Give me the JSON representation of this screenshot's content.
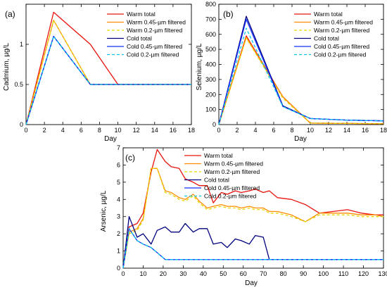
{
  "chart_data": [
    {
      "type": "line",
      "panel_label": "(a)",
      "xlabel": "Day",
      "ylabel": "Cadmium, µg/L",
      "xlim": [
        0,
        18
      ],
      "ylim": [
        0,
        1.5
      ],
      "xticks": [
        0,
        2,
        4,
        6,
        8,
        10,
        12,
        14,
        16,
        18
      ],
      "yticks": [
        0,
        0.5,
        1,
        1.5
      ],
      "ytick_labels": [
        "0",
        "0.5",
        "1",
        ""
      ],
      "legend_position": "top-right",
      "series": [
        {
          "name": "Warm total",
          "color": "#e8140c",
          "dash": "solid",
          "x": [
            0,
            3,
            7,
            10,
            18
          ],
          "y": [
            0,
            1.4,
            1.0,
            0.5,
            0.5
          ]
        },
        {
          "name": "Warm 0.45-µm filtered",
          "color": "#ff8c00",
          "dash": "solid",
          "x": [
            0,
            3,
            7,
            10,
            18
          ],
          "y": [
            0,
            1.3,
            0.5,
            0.5,
            0.5
          ]
        },
        {
          "name": "Warm 0.2-µm filtered",
          "color": "#e6d800",
          "dash": "dashed",
          "x": [
            0,
            3,
            7,
            10,
            18
          ],
          "y": [
            0,
            1.3,
            0.5,
            0.5,
            0.5
          ]
        },
        {
          "name": "Cold total",
          "color": "#000080",
          "dash": "solid",
          "x": [
            0,
            3,
            7,
            10,
            18
          ],
          "y": [
            0,
            1.1,
            0.5,
            0.5,
            0.5
          ]
        },
        {
          "name": "Cold 0.45-µm filtered",
          "color": "#1530ff",
          "dash": "solid",
          "x": [
            0,
            3,
            7,
            10,
            18
          ],
          "y": [
            0,
            1.1,
            0.5,
            0.5,
            0.5
          ]
        },
        {
          "name": "Cold 0.2-µm filtered",
          "color": "#00c8e6",
          "dash": "dashed",
          "x": [
            0,
            3,
            7,
            10,
            18
          ],
          "y": [
            0,
            1.1,
            0.5,
            0.5,
            0.5
          ]
        }
      ]
    },
    {
      "type": "line",
      "panel_label": "(b)",
      "xlabel": "Day",
      "ylabel": "Selenium, µg/L",
      "xlim": [
        0,
        18
      ],
      "ylim": [
        0,
        800
      ],
      "xticks": [
        0,
        2,
        4,
        6,
        8,
        10,
        12,
        14,
        16,
        18
      ],
      "yticks": [
        0,
        100,
        200,
        300,
        400,
        500,
        600,
        700,
        800
      ],
      "ytick_labels": [
        "0",
        "100",
        "200",
        "300",
        "400",
        "500",
        "600",
        "700",
        "800"
      ],
      "legend_position": "top-right",
      "series": [
        {
          "name": "Warm total",
          "color": "#e8140c",
          "dash": "solid",
          "x": [
            0,
            3,
            7,
            10,
            14,
            18
          ],
          "y": [
            0,
            590,
            185,
            10,
            8,
            5
          ]
        },
        {
          "name": "Warm 0.45-µm filtered",
          "color": "#ff8c00",
          "dash": "solid",
          "x": [
            0,
            3,
            7,
            10,
            14,
            18
          ],
          "y": [
            0,
            580,
            185,
            10,
            8,
            5
          ]
        },
        {
          "name": "Warm 0.2-µm filtered",
          "color": "#e6d800",
          "dash": "dashed",
          "x": [
            0,
            3,
            7,
            10,
            14,
            18
          ],
          "y": [
            0,
            575,
            175,
            10,
            8,
            5
          ]
        },
        {
          "name": "Cold total",
          "color": "#000080",
          "dash": "solid",
          "x": [
            0,
            3,
            7,
            10,
            14,
            18
          ],
          "y": [
            0,
            720,
            125,
            40,
            30,
            25
          ]
        },
        {
          "name": "Cold 0.45-µm filtered",
          "color": "#1530ff",
          "dash": "solid",
          "x": [
            0,
            3,
            7,
            10,
            14,
            18
          ],
          "y": [
            0,
            700,
            120,
            40,
            30,
            25
          ]
        },
        {
          "name": "Cold 0.2-µm filtered",
          "color": "#00c8e6",
          "dash": "dashed",
          "x": [
            0,
            3,
            7,
            10,
            14,
            18
          ],
          "y": [
            0,
            640,
            120,
            40,
            30,
            25
          ]
        }
      ]
    },
    {
      "type": "line",
      "panel_label": "(c)",
      "xlabel": "Day",
      "ylabel": "Arsenic, µg/L",
      "xlim": [
        0,
        130
      ],
      "ylim": [
        0,
        7
      ],
      "xticks": [
        0,
        10,
        20,
        30,
        40,
        50,
        60,
        70,
        80,
        90,
        100,
        110,
        120,
        130
      ],
      "yticks": [
        0,
        1,
        2,
        3,
        4,
        5,
        6,
        7
      ],
      "ytick_labels": [
        "0",
        "1",
        "2",
        "3",
        "4",
        "5",
        "6",
        "7"
      ],
      "legend_position": "top-right",
      "series": [
        {
          "name": "Warm total",
          "color": "#e8140c",
          "dash": "solid",
          "x": [
            0,
            3,
            7,
            10,
            14,
            17,
            21,
            24,
            28,
            31,
            35,
            38,
            42,
            45,
            49,
            52,
            56,
            59,
            63,
            66,
            70,
            73,
            77,
            84,
            91,
            98,
            105,
            112,
            119,
            126,
            130
          ],
          "y": [
            0,
            2.4,
            2.6,
            3.2,
            5.6,
            6.9,
            6.2,
            5.9,
            5.8,
            5.2,
            5.0,
            4.8,
            4.8,
            3.8,
            4.4,
            4.3,
            4.5,
            4.4,
            4.5,
            4.6,
            4.4,
            4.5,
            4.1,
            4.0,
            3.7,
            3.2,
            3.3,
            3.4,
            3.2,
            3.1,
            3.1
          ]
        },
        {
          "name": "Warm 0.45-µm filtered",
          "color": "#ff8c00",
          "dash": "solid",
          "x": [
            0,
            3,
            7,
            10,
            14,
            17,
            21,
            24,
            28,
            31,
            35,
            38,
            42,
            45,
            49,
            52,
            56,
            59,
            63,
            66,
            70,
            73,
            77,
            84,
            91,
            98,
            105,
            112,
            119,
            126,
            130
          ],
          "y": [
            0,
            2.1,
            2.3,
            2.9,
            5.8,
            5.8,
            4.5,
            4.4,
            4.1,
            4.0,
            4.3,
            3.9,
            3.5,
            3.6,
            3.7,
            3.6,
            3.6,
            3.5,
            3.6,
            3.5,
            3.5,
            3.3,
            3.3,
            3.1,
            2.7,
            3.2,
            3.2,
            3.2,
            3.1,
            3.1,
            3.0
          ]
        },
        {
          "name": "Warm 0.2-µm filtered",
          "color": "#e6d800",
          "dash": "dashed",
          "x": [
            0,
            3,
            7,
            10,
            14,
            17,
            21,
            24,
            28,
            31,
            35,
            38,
            42,
            45,
            49,
            52,
            56,
            59,
            63,
            66,
            70,
            73,
            77,
            84,
            91,
            98,
            105,
            112,
            119,
            126,
            130
          ],
          "y": [
            0,
            2.0,
            2.2,
            2.8,
            5.8,
            5.8,
            4.4,
            4.3,
            4.0,
            3.9,
            4.2,
            3.8,
            3.4,
            3.5,
            3.6,
            3.5,
            3.5,
            3.4,
            3.5,
            3.4,
            3.4,
            3.2,
            3.2,
            3.0,
            2.7,
            3.1,
            3.1,
            3.1,
            3.0,
            3.0,
            3.0
          ]
        },
        {
          "name": "Cold total",
          "color": "#000080",
          "dash": "solid",
          "x": [
            0,
            3,
            7,
            10,
            14,
            17,
            21,
            24,
            28,
            31,
            35,
            38,
            42,
            45,
            49,
            52,
            56,
            59,
            63,
            66,
            70,
            73,
            77,
            84,
            91,
            98,
            105,
            112,
            119,
            126,
            130
          ],
          "y": [
            0,
            3.0,
            1.8,
            2.0,
            1.4,
            2.2,
            2.4,
            2.1,
            2.1,
            2.6,
            2.1,
            2.3,
            2.3,
            1.4,
            1.5,
            1.2,
            1.7,
            1.6,
            1.4,
            1.9,
            1.8,
            0.5,
            0.5,
            0.5,
            0.5,
            0.5,
            0.5,
            0.5,
            0.5,
            0.5,
            0.5
          ]
        },
        {
          "name": "Cold 0.45-µm filtered",
          "color": "#1530ff",
          "dash": "solid",
          "x": [
            0,
            3,
            7,
            10,
            14,
            17,
            21,
            24,
            28,
            31,
            35,
            38,
            42,
            45,
            49,
            52,
            56,
            59,
            63,
            66,
            70,
            73,
            77,
            84,
            91,
            98,
            105,
            112,
            119,
            126,
            130
          ],
          "y": [
            0,
            2.3,
            1.6,
            1.4,
            1.2,
            0.9,
            0.5,
            0.5,
            0.5,
            0.5,
            0.5,
            0.5,
            0.5,
            0.5,
            0.5,
            0.5,
            0.5,
            0.5,
            0.5,
            0.5,
            0.5,
            0.5,
            0.5,
            0.5,
            0.5,
            0.5,
            0.5,
            0.5,
            0.5,
            0.5,
            0.5
          ]
        },
        {
          "name": "Cold 0.2-µm filtered",
          "color": "#00c8e6",
          "dash": "dashed",
          "x": [
            0,
            3,
            7,
            10,
            14,
            17,
            21,
            24,
            28,
            31,
            35,
            38,
            42,
            45,
            49,
            52,
            56,
            59,
            63,
            66,
            70,
            73,
            77,
            84,
            91,
            98,
            105,
            112,
            119,
            126,
            130
          ],
          "y": [
            0,
            2.3,
            1.6,
            1.4,
            1.2,
            0.9,
            0.5,
            0.5,
            0.5,
            0.5,
            0.5,
            0.5,
            0.5,
            0.5,
            0.5,
            0.5,
            0.5,
            0.5,
            0.5,
            0.5,
            0.5,
            0.5,
            0.5,
            0.5,
            0.5,
            0.5,
            0.5,
            0.5,
            0.5,
            0.5,
            0.5
          ]
        }
      ]
    }
  ]
}
